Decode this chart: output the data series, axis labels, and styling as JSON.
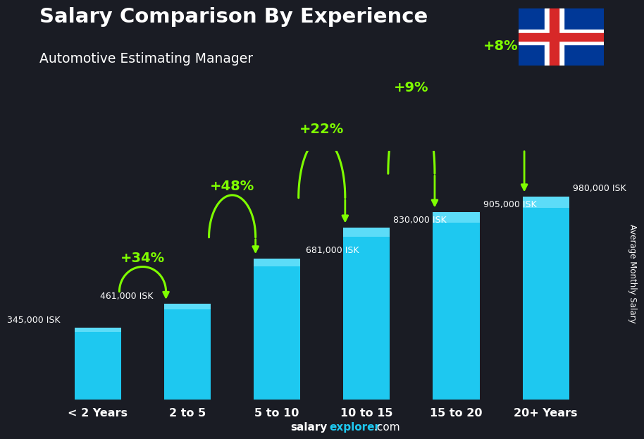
{
  "title": "Salary Comparison By Experience",
  "subtitle": "Automotive Estimating Manager",
  "categories": [
    "< 2 Years",
    "2 to 5",
    "5 to 10",
    "10 to 15",
    "15 to 20",
    "20+ Years"
  ],
  "values": [
    345000,
    461000,
    681000,
    830000,
    905000,
    980000
  ],
  "labels": [
    "345,000 ISK",
    "461,000 ISK",
    "681,000 ISK",
    "830,000 ISK",
    "905,000 ISK",
    "980,000 ISK"
  ],
  "pct_changes": [
    "+34%",
    "+48%",
    "+22%",
    "+9%",
    "+8%"
  ],
  "bar_color": "#1ec8f0",
  "bar_color_light": "#5cdcf8",
  "pct_color": "#7fff00",
  "label_color": "#ffffff",
  "title_color": "#ffffff",
  "subtitle_color": "#ffffff",
  "bg_color": "#1c1c2e",
  "ylabel": "Average Monthly Salary",
  "footer_salary": "salary",
  "footer_explorer": "explorer",
  "footer_com": ".com",
  "ylim_max": 1200000,
  "bar_width": 0.52,
  "xlim_min": -0.65,
  "xlim_max": 5.65
}
